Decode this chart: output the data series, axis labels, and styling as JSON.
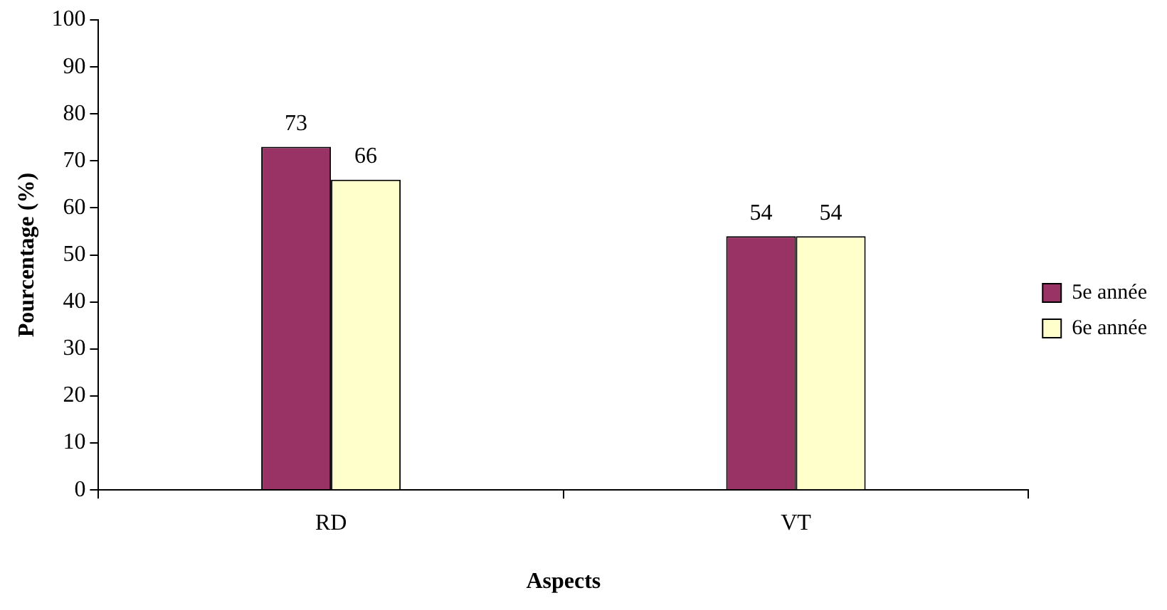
{
  "chart_data": {
    "type": "bar",
    "xlabel": "Aspects",
    "ylabel": "Pourcentage (%)",
    "categories": [
      "RD",
      "VT"
    ],
    "series": [
      {
        "name": "5e année",
        "color": "#993366",
        "values": [
          73,
          54
        ]
      },
      {
        "name": "6e année",
        "color": "#ffffcc",
        "values": [
          66,
          54
        ]
      }
    ],
    "ylim": [
      0,
      100
    ],
    "yticks": [
      0,
      10,
      20,
      30,
      40,
      50,
      60,
      70,
      80,
      90,
      100
    ],
    "grid": false,
    "legend": "right",
    "data_labels": true
  }
}
